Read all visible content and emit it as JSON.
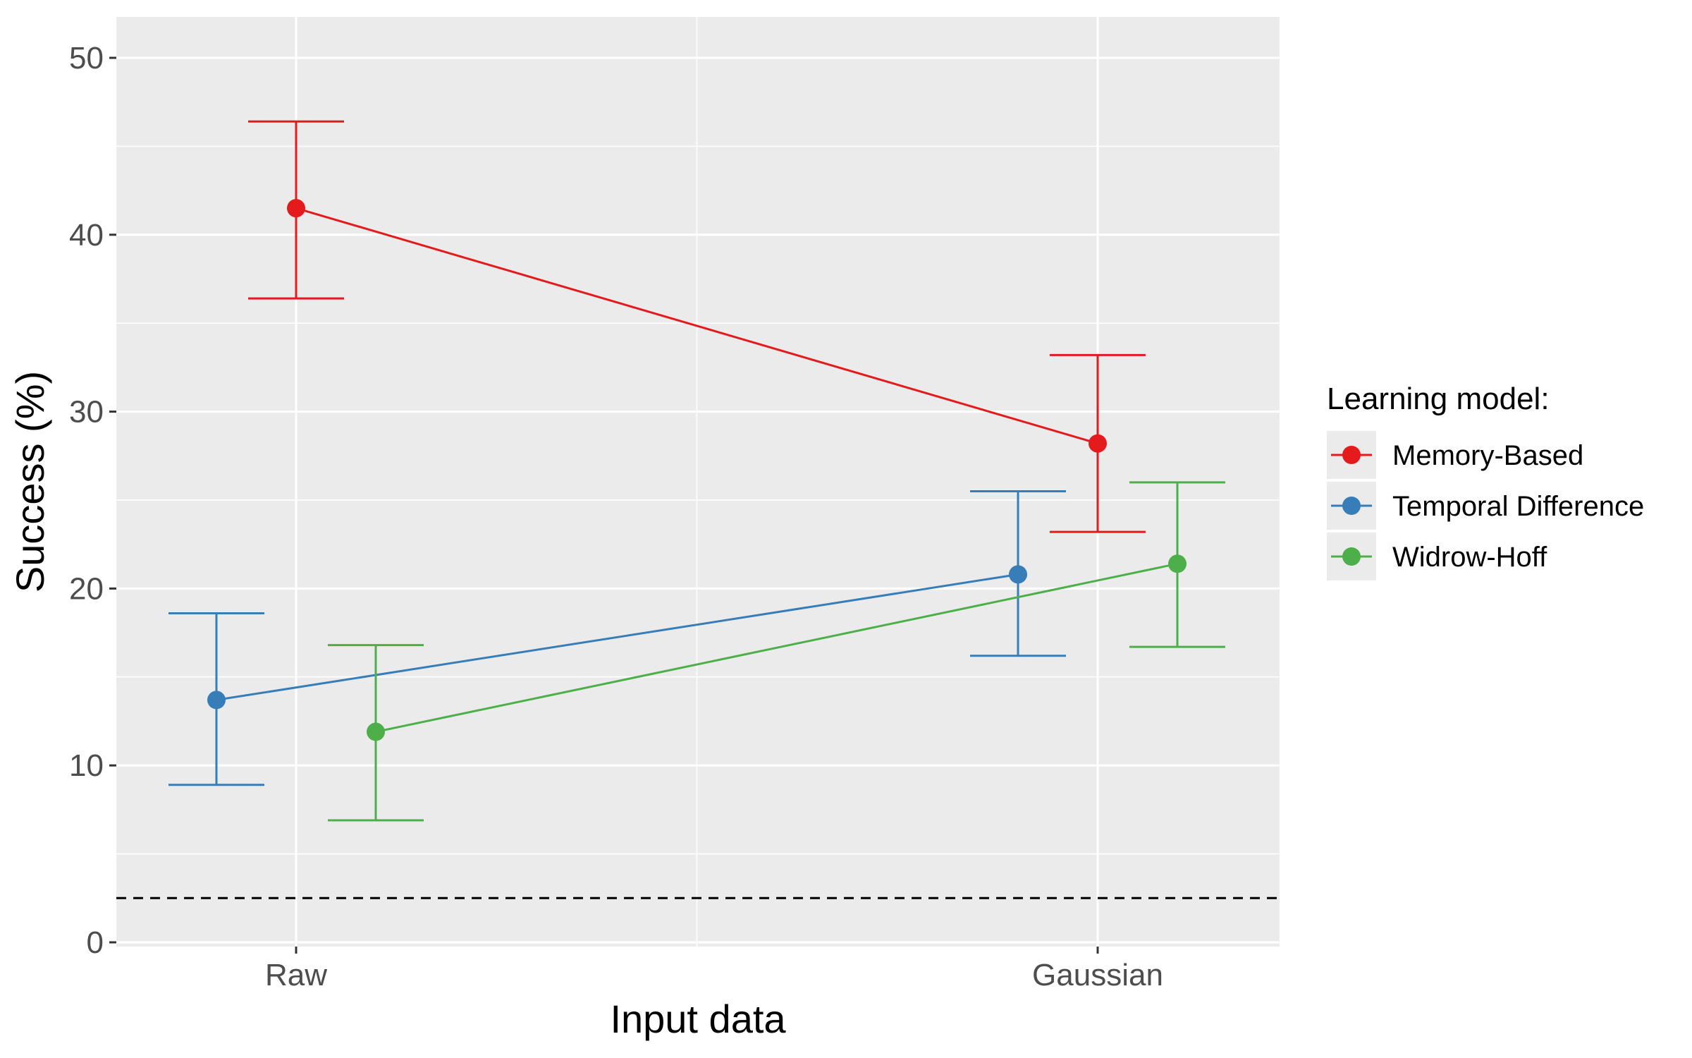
{
  "chart_data": {
    "type": "line",
    "title": "",
    "xlabel": "Input data",
    "ylabel": "Success (%)",
    "categories": [
      "Raw",
      "Gaussian"
    ],
    "ylim": [
      0,
      52.5
    ],
    "yticks": [
      0,
      10,
      20,
      30,
      40,
      50
    ],
    "ytick_labels": [
      "0",
      "10",
      "20",
      "30",
      "40",
      "50"
    ],
    "grid": true,
    "reference_line": {
      "y": 2.5,
      "style": "dashed",
      "color": "#000000"
    },
    "legend": {
      "title": "Learning model:",
      "position": "right"
    },
    "series": [
      {
        "name": "Memory-Based",
        "color": "#e41a1c",
        "dodge": 0,
        "values": [
          41.5,
          28.2
        ],
        "lower": [
          36.4,
          23.2
        ],
        "upper": [
          46.4,
          33.2
        ]
      },
      {
        "name": "Temporal Difference",
        "color": "#377eb8",
        "dodge": -1,
        "values": [
          13.7,
          20.8
        ],
        "lower": [
          8.9,
          16.2
        ],
        "upper": [
          18.6,
          25.5
        ]
      },
      {
        "name": "Widrow-Hoff",
        "color": "#4daf4a",
        "dodge": 1,
        "values": [
          11.9,
          21.4
        ],
        "lower": [
          6.9,
          16.7
        ],
        "upper": [
          16.8,
          26.0
        ]
      }
    ]
  }
}
